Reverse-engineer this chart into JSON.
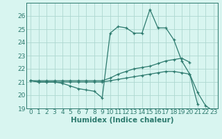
{
  "xlabel": "Humidex (Indice chaleur)",
  "x_values": [
    0,
    1,
    2,
    3,
    4,
    5,
    6,
    7,
    8,
    9,
    10,
    11,
    12,
    13,
    14,
    15,
    16,
    17,
    18,
    19,
    20,
    21,
    22,
    23
  ],
  "line1_y": [
    21.1,
    21.0,
    21.0,
    21.0,
    20.9,
    20.7,
    20.5,
    20.4,
    20.3,
    19.8,
    24.7,
    25.2,
    25.1,
    24.7,
    24.7,
    26.5,
    25.1,
    25.1,
    24.2,
    22.6,
    21.6,
    20.2,
    19.2,
    18.8
  ],
  "line2_y": [
    21.1,
    21.1,
    21.1,
    21.1,
    21.1,
    21.1,
    21.1,
    21.1,
    21.1,
    21.1,
    21.3,
    21.6,
    21.8,
    22.0,
    22.1,
    22.2,
    22.4,
    22.6,
    22.7,
    22.8,
    22.5,
    null,
    null,
    null
  ],
  "line3_y": [
    21.1,
    21.0,
    21.0,
    21.0,
    21.0,
    21.0,
    21.0,
    21.0,
    21.0,
    21.0,
    21.1,
    21.2,
    21.3,
    21.4,
    21.5,
    21.6,
    21.7,
    21.8,
    21.8,
    21.7,
    21.6,
    19.3,
    null,
    null
  ],
  "line_color": "#2d7a6e",
  "bg_color": "#d8f5f0",
  "grid_color": "#aed8d0",
  "ylim": [
    19,
    27
  ],
  "yticks": [
    19,
    20,
    21,
    22,
    23,
    24,
    25,
    26
  ],
  "xticks": [
    0,
    1,
    2,
    3,
    4,
    5,
    6,
    7,
    8,
    9,
    10,
    11,
    12,
    13,
    14,
    15,
    16,
    17,
    18,
    19,
    20,
    21,
    22,
    23
  ],
  "tick_fontsize": 6.5,
  "xlabel_fontsize": 7.5
}
